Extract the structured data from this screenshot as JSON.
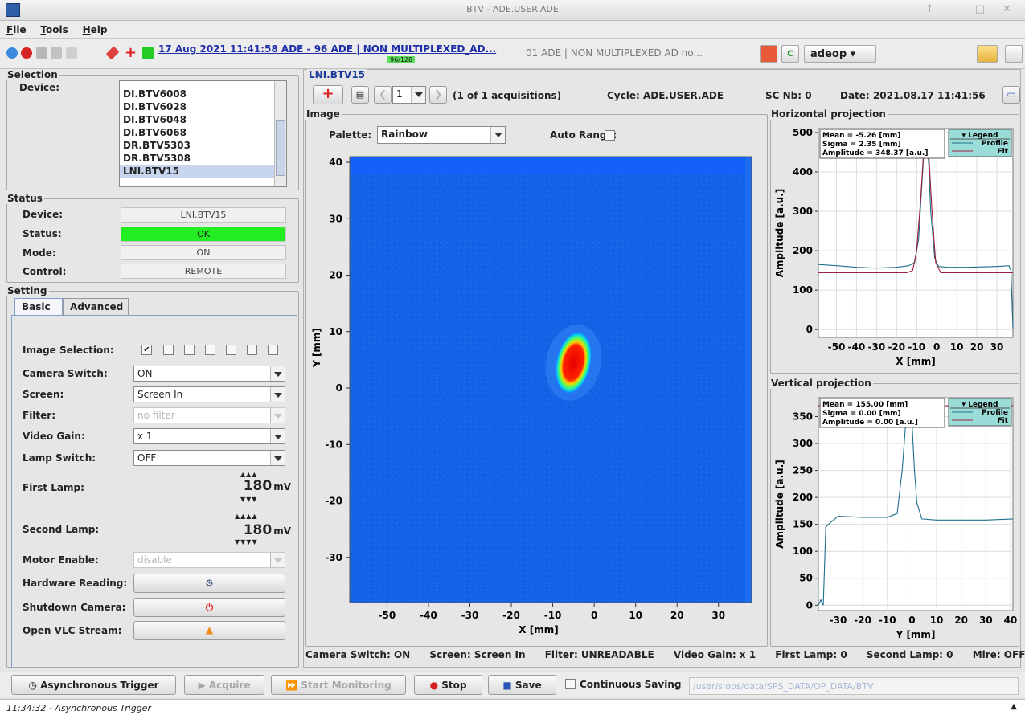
{
  "window": {
    "title": "BTV - ADE.USER.ADE"
  },
  "menu": [
    "File",
    "Tools",
    "Help"
  ],
  "toolbar": {
    "ticker": "17 Aug 2021  11:41:58  ADE - 96 ADE |  NON MULTIPLEXED_AD...",
    "ticker_count": "96/128",
    "ticker2": "01 ADE |  NON MULTIPLEXED AD no...",
    "user": "adeop"
  },
  "selection": {
    "legend": "Selection",
    "device_label": "Device:",
    "devices": [
      "DI.BTV6008",
      "DI.BTV6028",
      "DI.BTV6048",
      "DI.BTV6068",
      "DR.BTV5303",
      "DR.BTV5308",
      "LNI.BTV15"
    ],
    "selected_index": 6
  },
  "status": {
    "legend": "Status",
    "device_label": "Device:",
    "device": "LNI.BTV15",
    "status_label": "Status:",
    "status": "OK",
    "mode_label": "Mode:",
    "mode": "ON",
    "control_label": "Control:",
    "control": "REMOTE",
    "ok_color": "#22ee22"
  },
  "setting": {
    "legend": "Setting",
    "tabs": [
      "Basic",
      "Advanced"
    ],
    "image_selection_label": "Image Selection:",
    "camera_switch_label": "Camera Switch:",
    "camera_switch": "ON",
    "screen_label": "Screen:",
    "screen": "Screen In",
    "filter_label": "Filter:",
    "filter": "no filter",
    "video_gain_label": "Video Gain:",
    "video_gain": "x 1",
    "lamp_switch_label": "Lamp Switch:",
    "lamp_switch": "OFF",
    "first_lamp_label": "First Lamp:",
    "first_lamp": "180",
    "lamp_unit": "mV",
    "second_lamp_label": "Second Lamp:",
    "second_lamp": "180",
    "motor_enable_label": "Motor Enable:",
    "motor_enable": "disable",
    "hardware_reading_label": "Hardware Reading:",
    "shutdown_camera_label": "Shutdown Camera:",
    "open_vlc_label": "Open VLC Stream:"
  },
  "main": {
    "title": "LNI.BTV15",
    "acq_index": "1",
    "acq_text": "(1 of 1 acquisitions)",
    "cycle": "Cycle: ADE.USER.ADE",
    "sc_nb": "SC Nb: 0",
    "date": "Date:  2021.08.17 11:41:56",
    "image_legend": "Image",
    "palette_label": "Palette:",
    "palette": "Rainbow",
    "auto_range_label": "Auto Range:"
  },
  "statusline": {
    "camera": "Camera Switch: ON",
    "screen": "Screen: Screen In",
    "filter": "Filter: UNREADABLE",
    "gain": "Video Gain: x 1",
    "first": "First Lamp: 0",
    "second": "Second Lamp: 0",
    "mire": "Mire: OFF"
  },
  "bottom": {
    "async": "Asynchronous Trigger",
    "acquire": "Acquire",
    "monitor": "Start Monitoring",
    "stop": "Stop",
    "save": "Save",
    "continuous": "Continuous Saving",
    "path": "/user/slops/data/SPS_DATA/OP_DATA/BTV"
  },
  "message": "11:34:32 - Asynchronous Trigger",
  "chart_data": [
    {
      "type": "heatmap",
      "xlabel": "X [mm]",
      "ylabel": "Y [mm]",
      "xticks": [
        -50,
        -40,
        -30,
        -20,
        -10,
        0,
        10,
        20,
        30
      ],
      "yticks": [
        40,
        30,
        20,
        10,
        0,
        -10,
        -20,
        -30
      ],
      "xlim": [
        -59,
        38
      ],
      "ylim": [
        -38,
        41
      ],
      "spot_center": [
        -5,
        4.5
      ],
      "palette": "Rainbow"
    },
    {
      "type": "line",
      "title": "Horizontal projection",
      "xlabel": "X [mm]",
      "ylabel": "Amplitude [a.u.]",
      "xticks": [
        -50,
        -40,
        -30,
        -20,
        -10,
        0,
        10,
        20,
        30
      ],
      "yticks": [
        0,
        100,
        200,
        300,
        400,
        500
      ],
      "xlim": [
        -59,
        38
      ],
      "ylim": [
        -20,
        510
      ],
      "stats": [
        "Mean = -5.26 [mm]",
        "Sigma = 2.35 [mm]",
        "Amplitude = 348.37 [a.u.]"
      ],
      "legend": [
        "Legend",
        "Profile",
        "Fit"
      ],
      "series": [
        {
          "name": "Profile",
          "x": [
            -59,
            -50,
            -40,
            -30,
            -20,
            -14,
            -11,
            -9,
            -7,
            -6,
            -5,
            -4,
            -3,
            -1,
            1,
            5,
            15,
            30,
            36,
            37,
            38
          ],
          "y": [
            165,
            162,
            158,
            156,
            158,
            162,
            170,
            230,
            400,
            485,
            480,
            420,
            300,
            180,
            160,
            158,
            158,
            160,
            162,
            150,
            0
          ]
        },
        {
          "name": "Fit",
          "x": [
            -59,
            -15,
            -12,
            -10,
            -8,
            -6.5,
            -5.3,
            -4,
            -2.5,
            -0.5,
            2,
            38
          ],
          "y": [
            144,
            144,
            150,
            200,
            330,
            455,
            492,
            450,
            310,
            170,
            144,
            144
          ]
        }
      ]
    },
    {
      "type": "line",
      "title": "Vertical projection",
      "xlabel": "Y [mm]",
      "ylabel": "Amplitude [a.u.]",
      "xticks": [
        -30,
        -20,
        -10,
        0,
        10,
        20,
        30,
        40
      ],
      "yticks": [
        0,
        50,
        100,
        150,
        200,
        250,
        300,
        350
      ],
      "xlim": [
        -38,
        41
      ],
      "ylim": [
        -10,
        385
      ],
      "stats": [
        "Mean = 155.00 [mm]",
        "Sigma = 0.00 [mm]",
        "Amplitude = 0.00 [a.u.]"
      ],
      "legend": [
        "Legend",
        "Profile",
        "Fit"
      ],
      "series": [
        {
          "name": "Profile",
          "x": [
            -38,
            -37,
            -36,
            -35,
            -34,
            -30,
            -20,
            -10,
            -6,
            -4,
            -2,
            -1,
            0,
            1,
            2,
            4,
            10,
            20,
            30,
            41
          ],
          "y": [
            0,
            10,
            0,
            145,
            150,
            165,
            163,
            163,
            170,
            250,
            370,
            378,
            340,
            250,
            190,
            160,
            158,
            158,
            158,
            160
          ]
        },
        {
          "name": "Fit",
          "x": [
            -38,
            41
          ],
          "y": [
            370,
            370
          ]
        }
      ]
    }
  ]
}
